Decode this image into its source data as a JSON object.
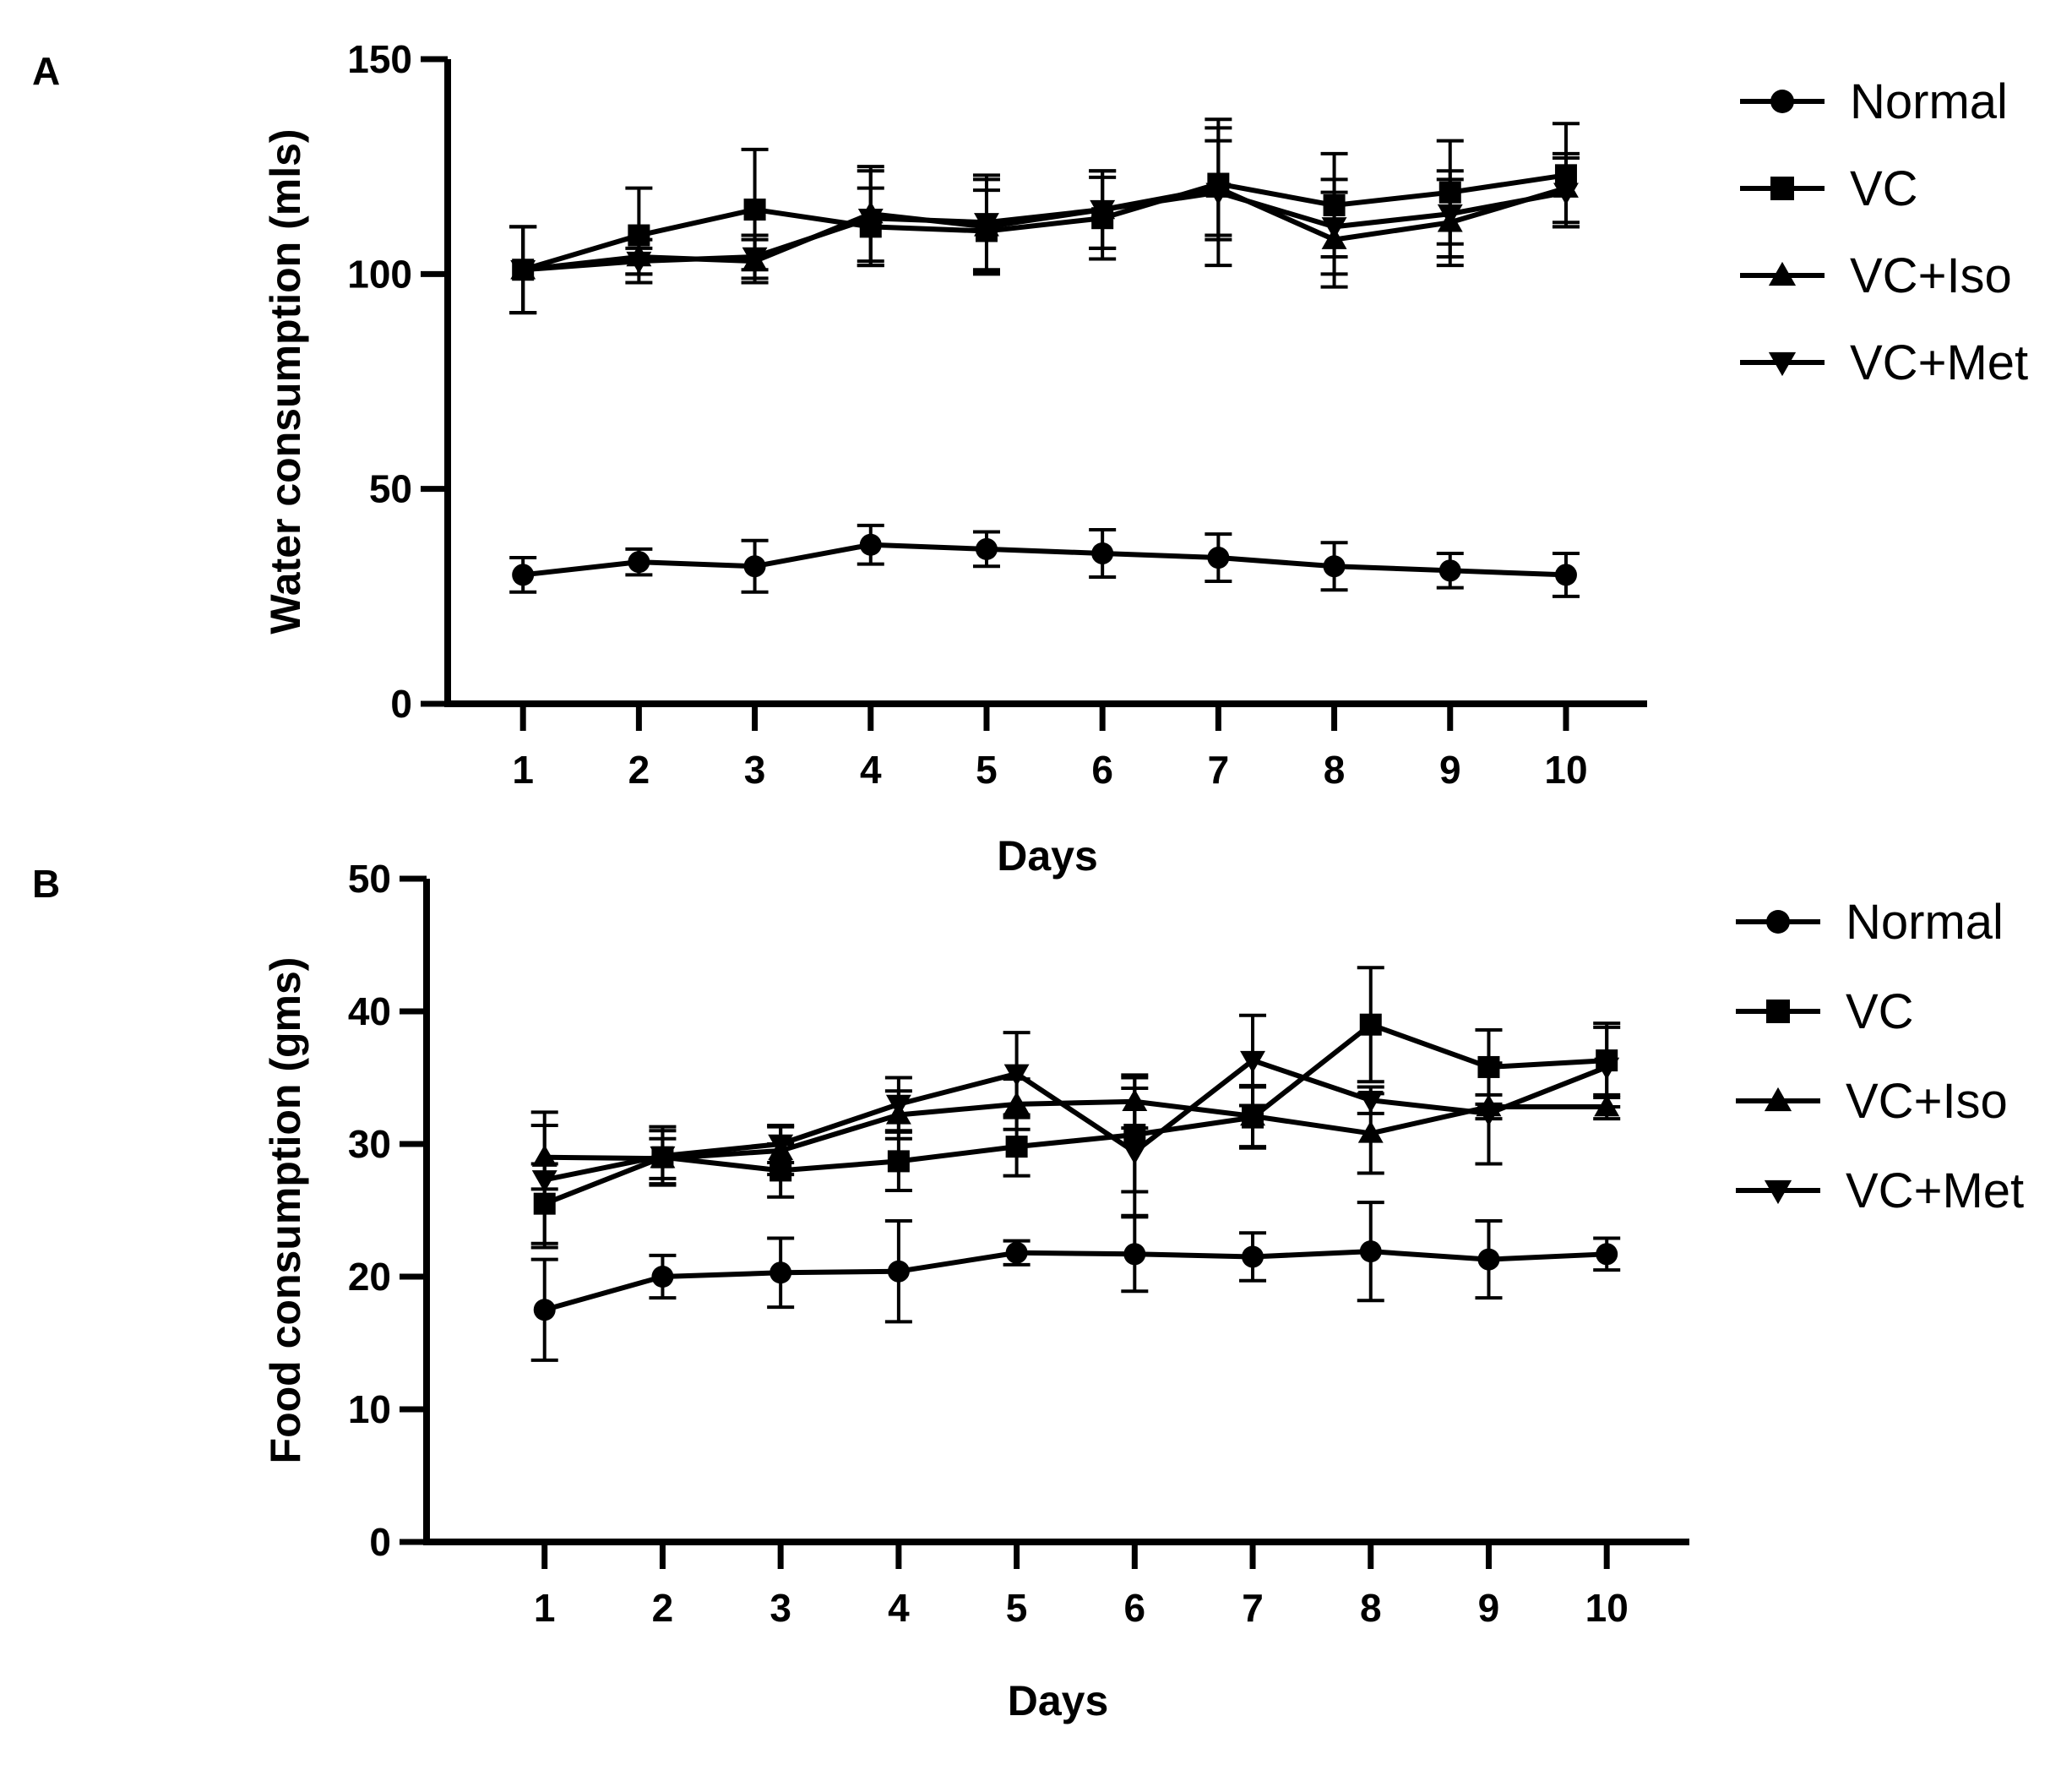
{
  "chart_data": [
    {
      "type": "line",
      "panel_label": "A",
      "title": "",
      "xlabel": "Days",
      "ylabel": "Water consumption (mls)",
      "x": [
        1,
        2,
        3,
        4,
        5,
        6,
        7,
        8,
        9,
        10
      ],
      "xlim": [
        0.35,
        10.7
      ],
      "ylim": [
        0,
        150
      ],
      "yticks": [
        0,
        50,
        100,
        150
      ],
      "grid": false,
      "legend_position": "top-right, outside plot",
      "series": [
        {
          "name": "Normal",
          "marker": "circle",
          "values": [
            30,
            33,
            32,
            37,
            36,
            35,
            34,
            32,
            31,
            30
          ],
          "errors": [
            4,
            3,
            6,
            4.5,
            4,
            5.5,
            5.5,
            5.5,
            4,
            5
          ]
        },
        {
          "name": "VC",
          "marker": "square",
          "values": [
            101,
            109,
            115,
            111,
            110,
            113,
            121,
            116,
            119,
            123
          ],
          "errors": [
            10,
            11,
            14,
            9,
            9.5,
            9.5,
            13,
            12,
            12,
            12
          ]
        },
        {
          "name": "VC+Iso",
          "marker": "triangle-up",
          "values": [
            101,
            104,
            103,
            114,
            111,
            115,
            120,
            108,
            112,
            120
          ],
          "errors": [
            10,
            4,
            5,
            11,
            11,
            9,
            11,
            11,
            10,
            8
          ]
        },
        {
          "name": "VC+Met",
          "marker": "triangle-down",
          "values": [
            101,
            103,
            104,
            113,
            112,
            115,
            119,
            111,
            114,
            119
          ],
          "errors": [
            10,
            3,
            5,
            11,
            11,
            9,
            17,
            11,
            10,
            8
          ]
        }
      ]
    },
    {
      "type": "line",
      "panel_label": "B",
      "title": "",
      "xlabel": "Days",
      "ylabel": "Food consumption (gms)",
      "x": [
        1,
        2,
        3,
        4,
        5,
        6,
        7,
        8,
        9,
        10
      ],
      "xlim": [
        0.0,
        10.7
      ],
      "ylim": [
        0,
        50
      ],
      "yticks": [
        0,
        10,
        20,
        30,
        40,
        50
      ],
      "grid": false,
      "legend_position": "top-right, outside plot",
      "series": [
        {
          "name": "Normal",
          "marker": "circle",
          "values": [
            17.5,
            20,
            20.3,
            20.4,
            21.8,
            21.7,
            21.5,
            21.9,
            21.3,
            21.7
          ],
          "errors": [
            3.8,
            1.6,
            2.6,
            3.8,
            0.9,
            2.8,
            1.8,
            3.7,
            2.9,
            1.2
          ]
        },
        {
          "name": "VC",
          "marker": "square",
          "values": [
            25.5,
            29,
            28,
            28.7,
            29.8,
            30.7,
            32,
            39,
            35.8,
            36.3
          ],
          "errors": [
            3,
            2,
            2,
            2.2,
            2.2,
            4.3,
            2.3,
            4.3,
            2.8,
            2.8
          ]
        },
        {
          "name": "VC+Iso",
          "marker": "triangle-up",
          "values": [
            29,
            28.9,
            29.5,
            32.2,
            33,
            33.2,
            32.1,
            30.8,
            32.8,
            32.8
          ],
          "errors": [
            2.4,
            1.5,
            1.8,
            1.8,
            1.9,
            2,
            2.3,
            3,
            0.9,
            0.9
          ]
        },
        {
          "name": "VC+Met",
          "marker": "triangle-down",
          "values": [
            27.3,
            29.1,
            30,
            33,
            35.3,
            29.4,
            36.3,
            33.3,
            32.3,
            35.8
          ],
          "errors": [
            5.1,
            2.2,
            1.4,
            2,
            3.1,
            4.8,
            3.4,
            1,
            3.8,
            3
          ]
        }
      ]
    }
  ]
}
